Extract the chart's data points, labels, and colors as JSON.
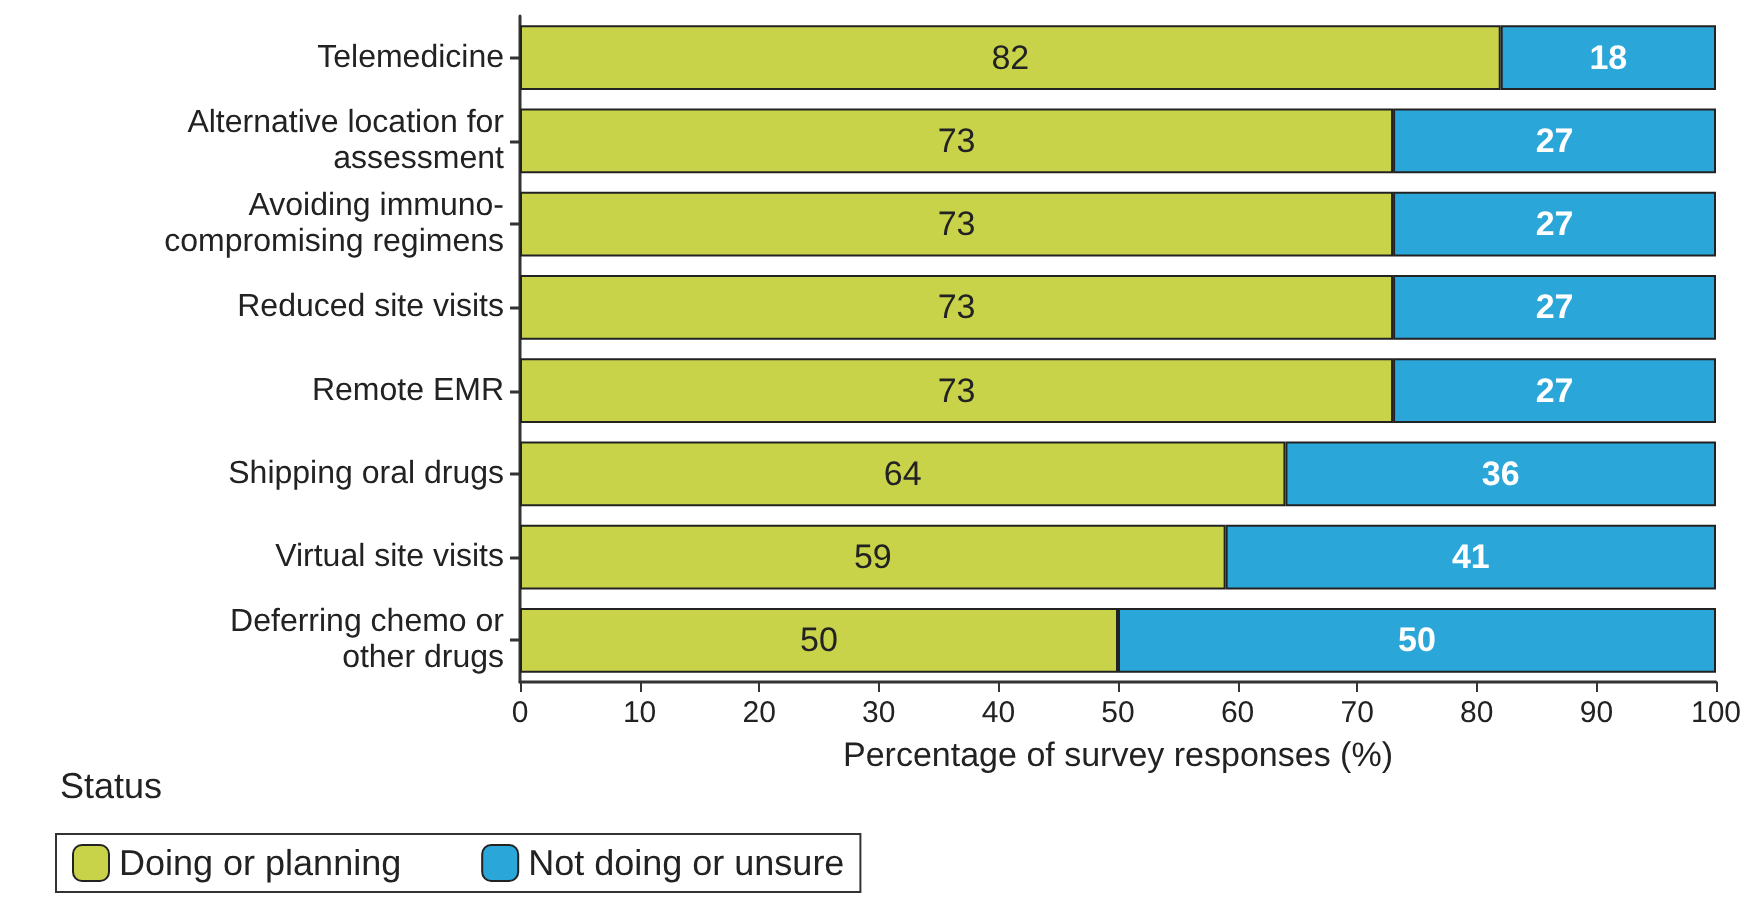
{
  "chart_data": {
    "type": "bar",
    "orientation": "horizontal",
    "stacked": true,
    "categories": [
      "Telemedicine",
      "Alternative location for\nassessment",
      "Avoiding immuno-\ncompromising regimens",
      "Reduced site visits",
      "Remote EMR",
      "Shipping oral drugs",
      "Virtual site visits",
      "Deferring chemo or\nother drugs"
    ],
    "series": [
      {
        "name": "Doing or planning",
        "color": "#c9d34a",
        "values": [
          82,
          73,
          73,
          73,
          73,
          64,
          59,
          50
        ]
      },
      {
        "name": "Not doing or unsure",
        "color": "#2ba6d9",
        "values": [
          18,
          27,
          27,
          27,
          27,
          36,
          41,
          50
        ]
      }
    ],
    "xlim": [
      0,
      100
    ],
    "xticks": [
      0,
      10,
      20,
      30,
      40,
      50,
      60,
      70,
      80,
      90,
      100
    ],
    "xlabel": "Percentage of survey responses (%)",
    "legend_title": "Status",
    "legend": "bottom left",
    "data_labels": true,
    "grid": false
  }
}
